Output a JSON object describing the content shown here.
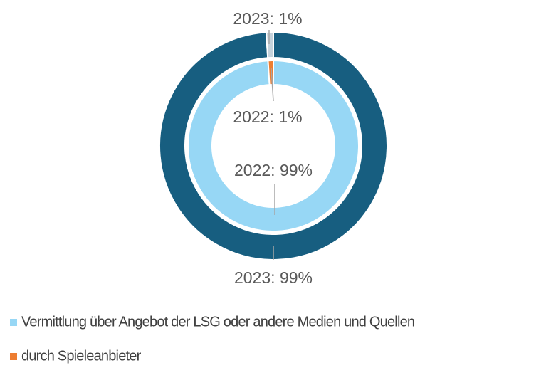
{
  "chart_data": {
    "type": "donut",
    "categories": [
      "Vermittlung über Angebot der LSG oder andere Medien und Quellen",
      "durch Spieleanbieter"
    ],
    "series": [
      {
        "colors": [
          "#175e80",
          "#c5d3dc"
        ],
        "values": [
          99,
          1
        ],
        "value_labels": [
          "2023: 99%",
          "2023: 1%"
        ]
      },
      {
        "colors": [
          "#97d7f5",
          "#ed7d31"
        ],
        "values": [
          99,
          1
        ],
        "value_labels": [
          "2022: 99%",
          "2022: 1%"
        ]
      }
    ]
  }
}
